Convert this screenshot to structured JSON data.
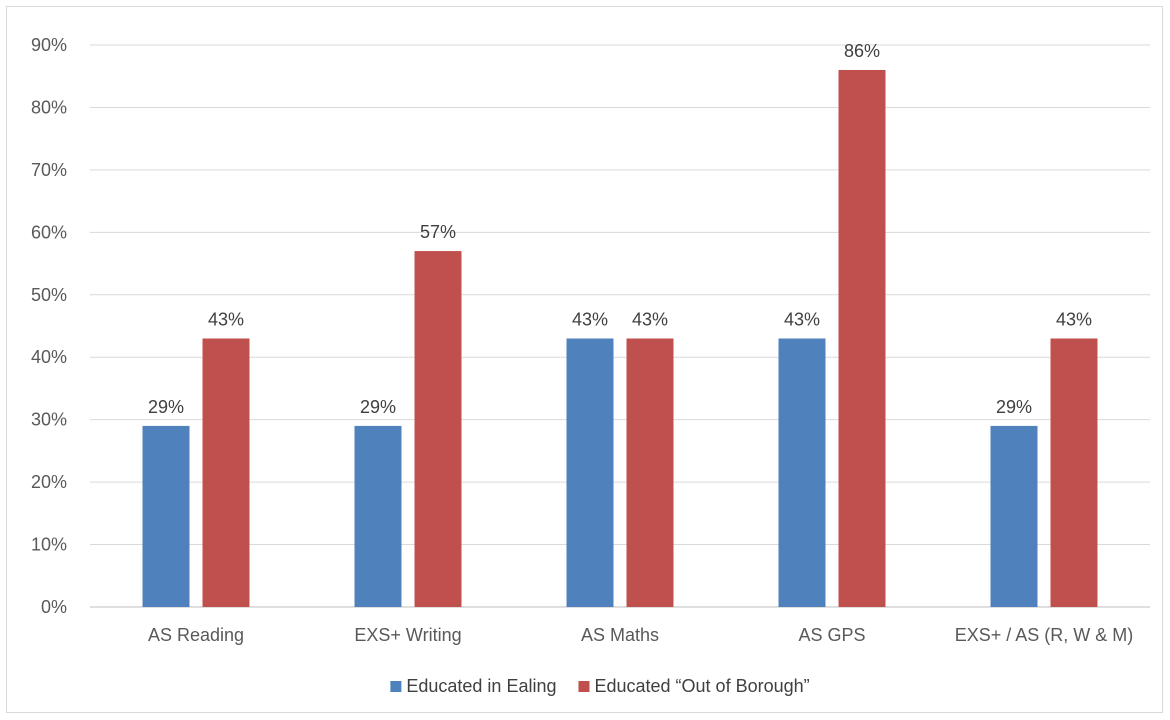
{
  "chart_data": {
    "type": "bar",
    "categories": [
      "AS Reading",
      "EXS+ Writing",
      "AS Maths",
      "AS GPS",
      "EXS+ / AS (R, W & M)"
    ],
    "series": [
      {
        "name": "Educated in Ealing",
        "color": "#4f81bd",
        "values": [
          29,
          29,
          43,
          43,
          29
        ],
        "labels": [
          "29%",
          "29%",
          "43%",
          "43%",
          "29%"
        ]
      },
      {
        "name": "Educated “Out of Borough”",
        "color": "#c0504d",
        "values": [
          43,
          57,
          43,
          86,
          43
        ],
        "labels": [
          "43%",
          "57%",
          "43%",
          "86%",
          "43%"
        ]
      }
    ],
    "yticks": [
      "0%",
      "10%",
      "20%",
      "30%",
      "40%",
      "50%",
      "60%",
      "70%",
      "80%",
      "90%"
    ],
    "ylim": [
      0,
      90
    ],
    "grid": true,
    "legend_position": "bottom",
    "title": "",
    "xlabel": "",
    "ylabel": ""
  }
}
